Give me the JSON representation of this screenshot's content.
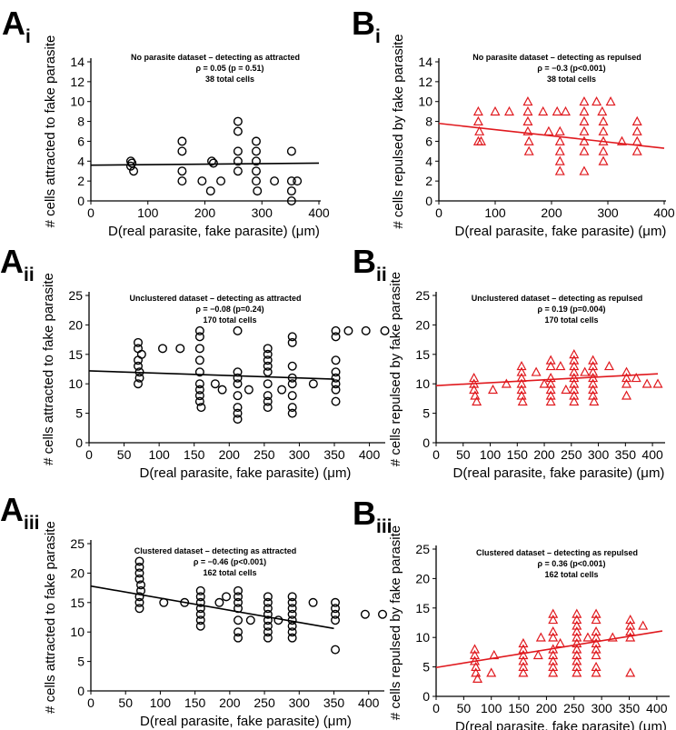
{
  "chart_data": [
    {
      "id": "Ai",
      "label_letter": "A",
      "label_sub": "i",
      "type": "scatter",
      "color": "#000000",
      "marker": "circle",
      "annotation": [
        "No parasite dataset – detecting as attracted",
        "ρ = 0.05 (p = 0.51)",
        "38 total cells"
      ],
      "xlabel": "D(real parasite, fake parasite) (μm)",
      "ylabel": "# cells attracted to fake parasite",
      "xlim": [
        0,
        400
      ],
      "ylim": [
        0,
        14
      ],
      "xticks": [
        0,
        100,
        200,
        300,
        400
      ],
      "yticks": [
        0,
        2,
        4,
        6,
        8,
        10,
        12,
        14
      ],
      "fit": [
        [
          0,
          3.6
        ],
        [
          400,
          3.8
        ]
      ],
      "points": [
        [
          70,
          4
        ],
        [
          70,
          3.5
        ],
        [
          75,
          3
        ],
        [
          72,
          3.8
        ],
        [
          160,
          6
        ],
        [
          160,
          5
        ],
        [
          160,
          3
        ],
        [
          160,
          2
        ],
        [
          195,
          2
        ],
        [
          210,
          1
        ],
        [
          212,
          4
        ],
        [
          215,
          3.8
        ],
        [
          228,
          2
        ],
        [
          258,
          8
        ],
        [
          258,
          7
        ],
        [
          258,
          5
        ],
        [
          258,
          4
        ],
        [
          258,
          3
        ],
        [
          290,
          6
        ],
        [
          290,
          5
        ],
        [
          290,
          4
        ],
        [
          290,
          3
        ],
        [
          290,
          2
        ],
        [
          292,
          1
        ],
        [
          322,
          2
        ],
        [
          352,
          5
        ],
        [
          352,
          2
        ],
        [
          352,
          1
        ],
        [
          352,
          0
        ],
        [
          362,
          2
        ]
      ]
    },
    {
      "id": "Bi",
      "label_letter": "B",
      "label_sub": "i",
      "type": "scatter",
      "color": "#e0191e",
      "marker": "triangle",
      "annotation": [
        "No parasite dataset – detecting as repulsed",
        "ρ = −0.3 (p<0.001)",
        "38 total cells"
      ],
      "xlabel": "D(real parasite, fake parasite) (μm)",
      "ylabel": "# cells repulsed by fake parasite",
      "xlim": [
        0,
        400
      ],
      "ylim": [
        0,
        14
      ],
      "xticks": [
        0,
        100,
        200,
        300,
        400
      ],
      "yticks": [
        0,
        2,
        4,
        6,
        8,
        10,
        12,
        14
      ],
      "fit": [
        [
          0,
          7.8
        ],
        [
          400,
          5.3
        ]
      ],
      "points": [
        [
          70,
          9
        ],
        [
          70,
          8
        ],
        [
          72,
          7
        ],
        [
          75,
          6
        ],
        [
          70,
          6
        ],
        [
          100,
          9
        ],
        [
          125,
          9
        ],
        [
          158,
          10
        ],
        [
          158,
          9
        ],
        [
          158,
          8
        ],
        [
          158,
          7
        ],
        [
          160,
          6
        ],
        [
          160,
          5
        ],
        [
          185,
          9
        ],
        [
          195,
          7
        ],
        [
          210,
          9
        ],
        [
          215,
          7
        ],
        [
          215,
          6
        ],
        [
          215,
          5
        ],
        [
          215,
          4
        ],
        [
          215,
          3
        ],
        [
          225,
          9
        ],
        [
          258,
          10
        ],
        [
          258,
          9
        ],
        [
          258,
          8
        ],
        [
          258,
          7
        ],
        [
          258,
          6
        ],
        [
          258,
          5
        ],
        [
          258,
          3
        ],
        [
          280,
          10
        ],
        [
          290,
          9
        ],
        [
          292,
          8
        ],
        [
          292,
          7
        ],
        [
          292,
          6
        ],
        [
          292,
          5
        ],
        [
          292,
          4
        ],
        [
          305,
          10
        ],
        [
          325,
          6
        ],
        [
          352,
          8
        ],
        [
          352,
          7
        ],
        [
          352,
          6
        ],
        [
          352,
          5
        ]
      ]
    },
    {
      "id": "Aii",
      "label_letter": "A",
      "label_sub": "ii",
      "type": "scatter",
      "color": "#000000",
      "marker": "circle",
      "annotation": [
        "Unclustered dataset – detecting as attracted",
        "ρ = −0.08 (p=0.24)",
        "170 total cells"
      ],
      "xlabel": "D(real parasite, fake parasite) (μm)",
      "ylabel": "# cells attracted to fake parasite",
      "xlim": [
        0,
        420
      ],
      "ylim": [
        0,
        25
      ],
      "xticks": [
        0,
        50,
        100,
        150,
        200,
        250,
        300,
        350,
        400
      ],
      "yticks": [
        0,
        5,
        10,
        15,
        20,
        25
      ],
      "fit": [
        [
          0,
          12.2
        ],
        [
          350,
          10.8
        ]
      ],
      "points": [
        [
          70,
          17
        ],
        [
          70,
          16
        ],
        [
          70,
          14
        ],
        [
          70,
          13
        ],
        [
          72,
          12
        ],
        [
          72,
          11
        ],
        [
          70,
          10
        ],
        [
          75,
          15
        ],
        [
          105,
          16
        ],
        [
          130,
          16
        ],
        [
          158,
          19
        ],
        [
          158,
          18
        ],
        [
          158,
          16
        ],
        [
          158,
          14
        ],
        [
          158,
          12
        ],
        [
          158,
          10
        ],
        [
          158,
          9
        ],
        [
          158,
          8
        ],
        [
          158,
          7
        ],
        [
          160,
          6
        ],
        [
          180,
          10
        ],
        [
          190,
          9
        ],
        [
          212,
          19
        ],
        [
          212,
          12
        ],
        [
          212,
          11
        ],
        [
          212,
          10
        ],
        [
          212,
          8
        ],
        [
          212,
          6
        ],
        [
          212,
          5
        ],
        [
          212,
          4
        ],
        [
          228,
          9
        ],
        [
          255,
          16
        ],
        [
          255,
          15
        ],
        [
          255,
          14
        ],
        [
          255,
          13
        ],
        [
          255,
          12
        ],
        [
          255,
          10
        ],
        [
          255,
          8
        ],
        [
          255,
          7
        ],
        [
          255,
          6
        ],
        [
          275,
          9
        ],
        [
          290,
          18
        ],
        [
          290,
          17
        ],
        [
          290,
          13
        ],
        [
          290,
          11
        ],
        [
          290,
          10
        ],
        [
          290,
          8
        ],
        [
          290,
          6
        ],
        [
          290,
          5
        ],
        [
          320,
          10
        ],
        [
          352,
          19
        ],
        [
          352,
          18
        ],
        [
          352,
          14
        ],
        [
          352,
          12
        ],
        [
          352,
          11
        ],
        [
          352,
          10
        ],
        [
          352,
          9
        ],
        [
          352,
          7
        ],
        [
          370,
          19
        ],
        [
          395,
          19
        ],
        [
          422,
          19
        ]
      ]
    },
    {
      "id": "Bii",
      "label_letter": "B",
      "label_sub": "ii",
      "type": "scatter",
      "color": "#e0191e",
      "marker": "triangle",
      "annotation": [
        "Unclustered dataset – detecting as repulsed",
        "ρ = 0.19 (p=0.004)",
        "170 total cells"
      ],
      "xlabel": "D(real parasite, fake parasite) (μm)",
      "ylabel": "# cells repulsed by fake parasite",
      "xlim": [
        0,
        420
      ],
      "ylim": [
        0,
        25
      ],
      "xticks": [
        0,
        50,
        100,
        150,
        200,
        250,
        300,
        350,
        400
      ],
      "yticks": [
        0,
        5,
        10,
        15,
        20,
        25
      ],
      "fit": [
        [
          0,
          9.7
        ],
        [
          410,
          11.7
        ]
      ],
      "points": [
        [
          70,
          11
        ],
        [
          70,
          10
        ],
        [
          70,
          9
        ],
        [
          72,
          8
        ],
        [
          75,
          7
        ],
        [
          105,
          9
        ],
        [
          130,
          10
        ],
        [
          158,
          13
        ],
        [
          158,
          12
        ],
        [
          158,
          11
        ],
        [
          158,
          10
        ],
        [
          158,
          9
        ],
        [
          158,
          8
        ],
        [
          160,
          7
        ],
        [
          185,
          12
        ],
        [
          200,
          10
        ],
        [
          212,
          14
        ],
        [
          212,
          13
        ],
        [
          212,
          11
        ],
        [
          212,
          10
        ],
        [
          212,
          9
        ],
        [
          212,
          8
        ],
        [
          212,
          7
        ],
        [
          230,
          13
        ],
        [
          240,
          9
        ],
        [
          255,
          15
        ],
        [
          255,
          14
        ],
        [
          255,
          13
        ],
        [
          255,
          12
        ],
        [
          255,
          11
        ],
        [
          255,
          10
        ],
        [
          255,
          9
        ],
        [
          255,
          8
        ],
        [
          255,
          7
        ],
        [
          275,
          12
        ],
        [
          290,
          14
        ],
        [
          290,
          13
        ],
        [
          290,
          12
        ],
        [
          290,
          11
        ],
        [
          290,
          10
        ],
        [
          290,
          9
        ],
        [
          290,
          8
        ],
        [
          292,
          7
        ],
        [
          320,
          13
        ],
        [
          352,
          12
        ],
        [
          352,
          11
        ],
        [
          352,
          10
        ],
        [
          352,
          8
        ],
        [
          370,
          11
        ],
        [
          390,
          10
        ],
        [
          410,
          10
        ]
      ]
    },
    {
      "id": "Aiii",
      "label_letter": "A",
      "label_sub": "iii",
      "type": "scatter",
      "color": "#000000",
      "marker": "circle",
      "annotation": [
        "Clustered dataset – detecting as attracted",
        "ρ = −0.46 (p<0.001)",
        "162 total cells"
      ],
      "xlabel": "D(real parasite, fake parasite) (μm)",
      "ylabel": "# cells attracted to fake parasite",
      "xlim": [
        0,
        420
      ],
      "ylim": [
        0,
        25
      ],
      "xticks": [
        0,
        50,
        100,
        150,
        200,
        250,
        300,
        350,
        400
      ],
      "yticks": [
        0,
        5,
        10,
        15,
        20,
        25
      ],
      "fit": [
        [
          0,
          17.8
        ],
        [
          350,
          10.6
        ]
      ],
      "points": [
        [
          70,
          22
        ],
        [
          70,
          21
        ],
        [
          70,
          20
        ],
        [
          70,
          19
        ],
        [
          72,
          18
        ],
        [
          72,
          17
        ],
        [
          70,
          16
        ],
        [
          70,
          15
        ],
        [
          70,
          14
        ],
        [
          105,
          15
        ],
        [
          135,
          15
        ],
        [
          158,
          17
        ],
        [
          158,
          16
        ],
        [
          158,
          15
        ],
        [
          158,
          14
        ],
        [
          158,
          13
        ],
        [
          158,
          12
        ],
        [
          158,
          11
        ],
        [
          185,
          15
        ],
        [
          195,
          16
        ],
        [
          212,
          17
        ],
        [
          212,
          16
        ],
        [
          212,
          15
        ],
        [
          212,
          14
        ],
        [
          212,
          12
        ],
        [
          212,
          10
        ],
        [
          212,
          9
        ],
        [
          230,
          12
        ],
        [
          255,
          16
        ],
        [
          255,
          15
        ],
        [
          255,
          14
        ],
        [
          255,
          13
        ],
        [
          255,
          12
        ],
        [
          255,
          11
        ],
        [
          255,
          10
        ],
        [
          255,
          9
        ],
        [
          270,
          12
        ],
        [
          290,
          16
        ],
        [
          290,
          15
        ],
        [
          290,
          14
        ],
        [
          290,
          13
        ],
        [
          290,
          12
        ],
        [
          290,
          11
        ],
        [
          290,
          10
        ],
        [
          290,
          9
        ],
        [
          320,
          15
        ],
        [
          352,
          15
        ],
        [
          352,
          14
        ],
        [
          352,
          13
        ],
        [
          352,
          12
        ],
        [
          352,
          7
        ],
        [
          395,
          13
        ],
        [
          420,
          13
        ]
      ]
    },
    {
      "id": "Biii",
      "label_letter": "B",
      "label_sub": "iii",
      "type": "scatter",
      "color": "#e0191e",
      "marker": "triangle",
      "annotation": [
        "Clustered dataset – detecting as repulsed",
        "ρ = 0.36 (p<0.001)",
        "162 total cells"
      ],
      "xlabel": "D(real parasite, fake parasite) (μm)",
      "ylabel": "# cells repulsed by fake parasite",
      "xlim": [
        0,
        420
      ],
      "ylim": [
        0,
        25
      ],
      "xticks": [
        0,
        50,
        100,
        150,
        200,
        250,
        300,
        350,
        400
      ],
      "yticks": [
        0,
        5,
        10,
        15,
        20,
        25
      ],
      "fit": [
        [
          0,
          4.9
        ],
        [
          410,
          11.1
        ]
      ],
      "points": [
        [
          70,
          8
        ],
        [
          70,
          7
        ],
        [
          70,
          6
        ],
        [
          72,
          5
        ],
        [
          72,
          4
        ],
        [
          75,
          3
        ],
        [
          100,
          4
        ],
        [
          105,
          7
        ],
        [
          158,
          9
        ],
        [
          158,
          8
        ],
        [
          158,
          7
        ],
        [
          158,
          6
        ],
        [
          158,
          5
        ],
        [
          158,
          4
        ],
        [
          185,
          7
        ],
        [
          190,
          10
        ],
        [
          212,
          14
        ],
        [
          212,
          13
        ],
        [
          212,
          11
        ],
        [
          212,
          10
        ],
        [
          212,
          8
        ],
        [
          212,
          7
        ],
        [
          212,
          6
        ],
        [
          212,
          5
        ],
        [
          212,
          4
        ],
        [
          225,
          9
        ],
        [
          255,
          14
        ],
        [
          255,
          13
        ],
        [
          255,
          12
        ],
        [
          255,
          11
        ],
        [
          255,
          10
        ],
        [
          255,
          9
        ],
        [
          255,
          8
        ],
        [
          255,
          7
        ],
        [
          255,
          6
        ],
        [
          255,
          5
        ],
        [
          255,
          4
        ],
        [
          275,
          10
        ],
        [
          290,
          14
        ],
        [
          290,
          13
        ],
        [
          290,
          11
        ],
        [
          290,
          10
        ],
        [
          290,
          9
        ],
        [
          290,
          8
        ],
        [
          290,
          7
        ],
        [
          290,
          5
        ],
        [
          290,
          4
        ],
        [
          320,
          10
        ],
        [
          352,
          13
        ],
        [
          352,
          12
        ],
        [
          352,
          11
        ],
        [
          352,
          10
        ],
        [
          352,
          4
        ],
        [
          375,
          12
        ]
      ]
    }
  ]
}
